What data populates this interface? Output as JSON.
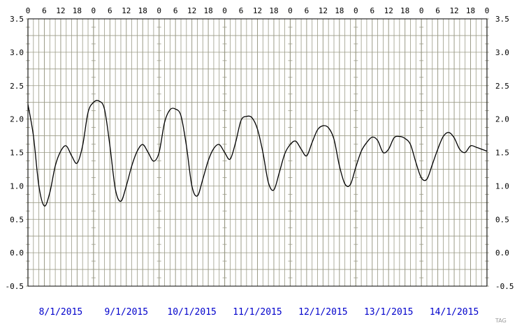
{
  "chart_data": {
    "type": "line",
    "title": "",
    "xlabel": "",
    "ylabel": "",
    "ylim": [
      -0.5,
      3.5
    ],
    "y_ticks": [
      "-0.5",
      "0.0",
      "0.5",
      "1.0",
      "1.5",
      "2.0",
      "2.5",
      "3.0",
      "3.5"
    ],
    "hour_ticks": [
      "0",
      "6",
      "12",
      "18"
    ],
    "days": [
      "8/1/2015",
      "9/1/2015",
      "10/1/2015",
      "11/1/2015",
      "12/1/2015",
      "13/1/2015",
      "14/1/2015"
    ],
    "grid": true,
    "line_color": "#000000",
    "grid_color": "#9b9b87",
    "date_color": "#0000cc",
    "watermark": "TAG",
    "series": [
      {
        "x_hours": [
          0,
          2,
          4,
          6,
          8,
          10,
          12,
          14,
          16,
          18,
          20,
          22,
          24,
          26,
          28,
          30,
          32,
          34,
          36,
          38,
          40,
          42,
          44,
          46,
          48,
          50,
          52,
          54,
          56,
          58,
          60,
          62,
          64,
          66,
          68,
          70,
          72,
          74,
          76,
          78,
          80,
          82,
          84,
          86,
          88,
          90,
          92,
          94,
          96,
          98,
          100,
          102,
          104,
          106,
          108,
          110,
          112,
          114,
          116,
          118,
          120,
          122,
          124,
          126,
          128,
          130,
          132,
          134,
          136,
          138,
          140,
          142,
          144,
          146,
          148,
          150,
          152,
          154,
          156,
          158,
          160,
          162,
          164,
          166,
          168
        ],
        "values": [
          2.22,
          1.75,
          1.0,
          0.7,
          0.9,
          1.3,
          1.52,
          1.6,
          1.45,
          1.34,
          1.6,
          2.1,
          2.25,
          2.27,
          2.15,
          1.6,
          0.95,
          0.77,
          1.0,
          1.3,
          1.52,
          1.62,
          1.5,
          1.37,
          1.5,
          1.95,
          2.14,
          2.15,
          2.05,
          1.6,
          1.0,
          0.85,
          1.1,
          1.38,
          1.56,
          1.62,
          1.5,
          1.4,
          1.65,
          1.98,
          2.04,
          2.02,
          1.85,
          1.5,
          1.05,
          0.94,
          1.2,
          1.48,
          1.62,
          1.67,
          1.55,
          1.45,
          1.65,
          1.84,
          1.9,
          1.87,
          1.7,
          1.3,
          1.03,
          1.02,
          1.28,
          1.52,
          1.65,
          1.73,
          1.68,
          1.5,
          1.55,
          1.72,
          1.74,
          1.71,
          1.62,
          1.35,
          1.12,
          1.1,
          1.32,
          1.55,
          1.74,
          1.8,
          1.72,
          1.55,
          1.5,
          1.6,
          1.58,
          1.55,
          1.52
        ]
      }
    ]
  }
}
